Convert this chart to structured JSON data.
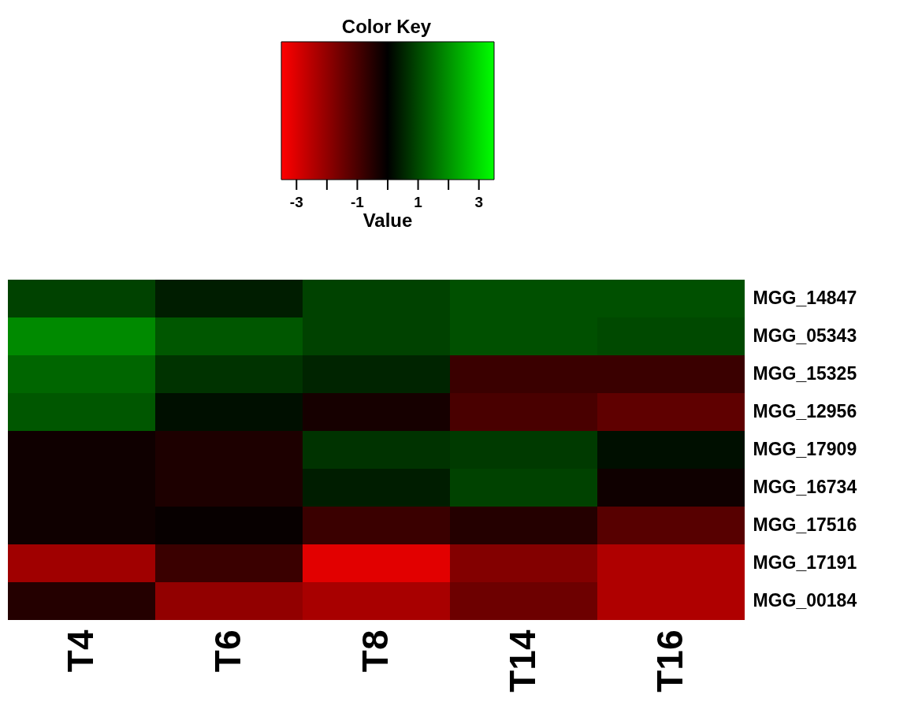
{
  "chart_data": {
    "type": "heatmap",
    "title": "Color Key",
    "clabel": "Value",
    "categories": [
      "T4",
      "T6",
      "T8",
      "T14",
      "T16"
    ],
    "y_categories": [
      "MGG_14847",
      "MGG_05343",
      "MGG_15325",
      "MGG_12956",
      "MGG_17909",
      "MGG_16734",
      "MGG_17516",
      "MGG_17191",
      "MGG_00184"
    ],
    "cells": [
      [
        0.9,
        0.4,
        0.9,
        1.1,
        1.1
      ],
      [
        1.9,
        1.2,
        0.9,
        1.1,
        1.0
      ],
      [
        1.4,
        0.7,
        0.5,
        -0.8,
        -0.8
      ],
      [
        1.2,
        0.2,
        -0.3,
        -1.0,
        -1.3
      ],
      [
        -0.2,
        -0.4,
        0.7,
        0.8,
        0.2
      ],
      [
        -0.2,
        -0.4,
        0.4,
        0.9,
        -0.2
      ],
      [
        -0.2,
        -0.1,
        -0.8,
        -0.5,
        -1.2
      ],
      [
        -2.2,
        -0.8,
        -3.1,
        -1.8,
        -2.4
      ],
      [
        -0.5,
        -2.0,
        -2.3,
        -1.5,
        -2.4
      ]
    ],
    "clim": [
      -3.5,
      3.5
    ],
    "cticks": [
      -3,
      {
        "value": -2,
        "label": null
      },
      -1,
      {
        "value": 0,
        "label": null
      },
      1,
      {
        "value": 2,
        "label": null
      },
      3
    ]
  }
}
